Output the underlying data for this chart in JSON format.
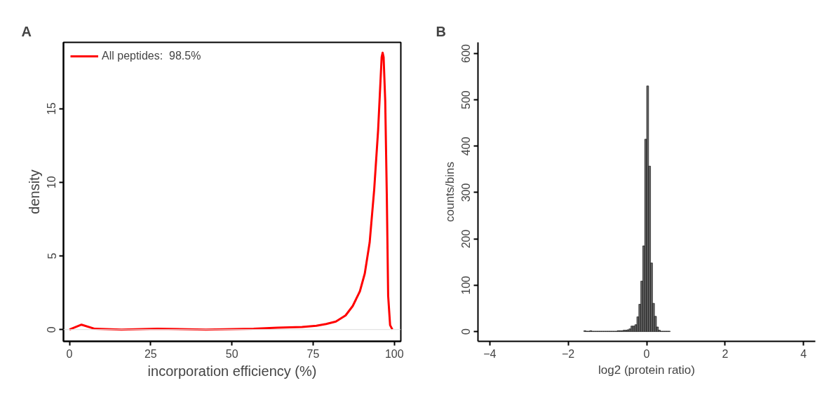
{
  "chart_data": [
    {
      "type": "line",
      "title": "A",
      "xlabel": "incorporation efficiency (%)",
      "ylabel": "density",
      "xlim": [
        -1.85,
        102
      ],
      "ylim": [
        -0.8,
        19.5
      ],
      "xticks": [
        0,
        25,
        50,
        75,
        100
      ],
      "yticks": [
        0,
        5,
        10,
        15
      ],
      "grid": false,
      "legend": "top left",
      "line_style": "solid",
      "marker": "none",
      "ref_lines": [
        {
          "axis": "y",
          "value": 0,
          "label": null,
          "color": "#dddddd"
        }
      ],
      "series": [
        {
          "name": "All peptides:  98.5%",
          "color": "#ff0000",
          "x": [
            0,
            3.7,
            7.8,
            16,
            27,
            42,
            56.7,
            64,
            71.6,
            76,
            79,
            82,
            85,
            87.2,
            89.4,
            90.9,
            92.4,
            93.8,
            95,
            96.1,
            96.4,
            96.7,
            97.2,
            97.7,
            98.1,
            98.7,
            99.4
          ],
          "values": [
            0,
            0.33,
            0.05,
            0,
            0.05,
            0,
            0.05,
            0.13,
            0.17,
            0.26,
            0.38,
            0.54,
            0.96,
            1.6,
            2.6,
            3.8,
            5.9,
            9.5,
            13.5,
            18.5,
            18.8,
            18.5,
            15.5,
            8.9,
            2.3,
            0.3,
            0
          ]
        }
      ]
    },
    {
      "type": "histogram",
      "title": "B",
      "xlabel": "log2 (protein ratio)",
      "ylabel": "counts/bins",
      "xlim": [
        -4.3,
        4.3
      ],
      "ylim": [
        -21,
        624
      ],
      "xticks": [
        {
          "value": -4,
          "label": "−4"
        },
        {
          "value": -2,
          "label": "−2"
        },
        0,
        2,
        4
      ],
      "yticks": [
        0,
        100,
        200,
        300,
        400,
        500,
        600
      ],
      "grid": false,
      "color": "#666666",
      "bins": [
        -1.6,
        -1.55,
        -1.5,
        -1.45,
        -1.4,
        -1.35,
        -1.3,
        -1.25,
        -1.2,
        -1.15,
        -1.1,
        -1.05,
        -1.0,
        -0.95,
        -0.9,
        -0.85,
        -0.8,
        -0.75,
        -0.7,
        -0.65,
        -0.6,
        -0.55,
        -0.5,
        -0.45,
        -0.4,
        -0.35,
        -0.3,
        -0.25,
        -0.2,
        -0.15,
        -0.1,
        -0.05,
        0,
        0.05,
        0.1,
        0.15,
        0.2,
        0.25,
        0.3,
        0.35,
        0.4,
        0.45,
        0.5,
        0.55,
        0.6
      ],
      "values": [
        2,
        1,
        1,
        2,
        1,
        1,
        1,
        1,
        1,
        1,
        1,
        1,
        1,
        1,
        1,
        1,
        1,
        2,
        2,
        2,
        3,
        3,
        4,
        6,
        12,
        12,
        15,
        32,
        59,
        109,
        185,
        415,
        530,
        357,
        148,
        61,
        33,
        10,
        3,
        1,
        1,
        1,
        1,
        1
      ]
    }
  ]
}
